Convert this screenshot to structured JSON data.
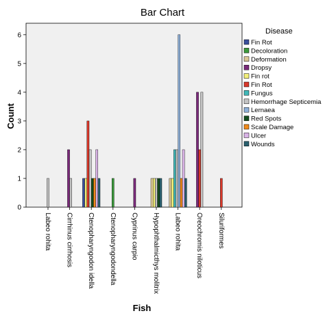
{
  "chart_data": {
    "type": "bar",
    "title": "Bar Chart",
    "xlabel": "Fish",
    "ylabel": "Count",
    "ylim": [
      0,
      6.4
    ],
    "yticks": [
      0,
      1,
      2,
      3,
      4,
      5,
      6
    ],
    "grid": false,
    "legend_title": "Disease",
    "legend_position": "right",
    "categories": [
      "Labeo rohita",
      "Cirrhinus cirrhosis",
      "Ctenopharyngodon idella",
      "Ctenopharyngodondella",
      "Cyprinus carpio",
      "Hypophthalmicthys molitrix",
      "Labeo rohita",
      "Oreochromis niloticus",
      "Siluriformes"
    ],
    "series": [
      {
        "name": "Fin Rot",
        "color": "#3a4f9c",
        "values": [
          0,
          0,
          1,
          0,
          0,
          0,
          0,
          0,
          0
        ]
      },
      {
        "name": "Decoloration",
        "color": "#3c9a3c",
        "values": [
          0,
          0,
          0,
          1,
          0,
          0,
          0,
          0,
          0
        ]
      },
      {
        "name": "Deformation",
        "color": "#d9c797",
        "values": [
          0,
          0,
          0,
          0,
          0,
          1,
          1,
          0,
          0
        ]
      },
      {
        "name": "Dropsy",
        "color": "#7a2a7a",
        "values": [
          0,
          2,
          0,
          0,
          1,
          0,
          0,
          4,
          0
        ]
      },
      {
        "name": "Fin rot",
        "color": "#f2ef7a",
        "values": [
          0,
          0,
          1,
          0,
          0,
          1,
          1,
          0,
          0
        ]
      },
      {
        "name": "Fin Rot",
        "color": "#d9392b",
        "values": [
          0,
          0,
          3,
          0,
          0,
          0,
          0,
          2,
          1
        ]
      },
      {
        "name": "Fungus",
        "color": "#41b8b8",
        "values": [
          0,
          0,
          0,
          0,
          0,
          0,
          2,
          0,
          0
        ]
      },
      {
        "name": "Hemorrhage Septicemia",
        "color": "#c4c4c4",
        "values": [
          1,
          1,
          2,
          0,
          0,
          1,
          2,
          4,
          0
        ]
      },
      {
        "name": "Lernaea",
        "color": "#8fb1d9",
        "values": [
          0,
          0,
          0,
          0,
          0,
          0,
          6,
          0,
          0
        ]
      },
      {
        "name": "Red Spots",
        "color": "#144d1e",
        "values": [
          0,
          0,
          1,
          0,
          0,
          1,
          0,
          0,
          0
        ]
      },
      {
        "name": "Scale Damage",
        "color": "#f08a1c",
        "values": [
          0,
          0,
          1,
          0,
          0,
          0,
          1,
          0,
          0
        ]
      },
      {
        "name": "Ulcer",
        "color": "#d9b3e6",
        "values": [
          0,
          0,
          2,
          0,
          0,
          0,
          2,
          0,
          0
        ]
      },
      {
        "name": "Wounds",
        "color": "#2a5f6e",
        "values": [
          0,
          0,
          1,
          0,
          0,
          1,
          1,
          0,
          0
        ]
      }
    ]
  }
}
